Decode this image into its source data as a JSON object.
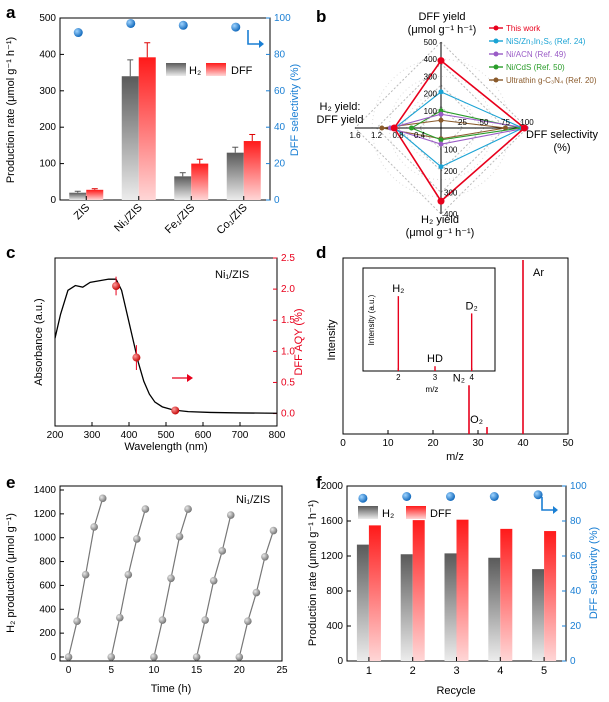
{
  "panels": {
    "a": "a",
    "b": "b",
    "c": "c",
    "d": "d",
    "e": "e",
    "f": "f"
  },
  "chart_data": [
    {
      "panel": "a",
      "type": "bar",
      "categories": [
        "ZIS",
        "Ni₁/ZIS",
        "Fe₁/ZIS",
        "Co₁/ZIS"
      ],
      "series": [
        {
          "name": "H₂",
          "values": [
            20,
            340,
            65,
            130
          ],
          "errors": [
            4,
            45,
            10,
            15
          ]
        },
        {
          "name": "DFF",
          "values": [
            28,
            392,
            100,
            162
          ],
          "errors": [
            3,
            40,
            12,
            18
          ]
        },
        {
          "name": "DFF selectivity",
          "axis": "right",
          "values": [
            92,
            97,
            96,
            95
          ]
        }
      ],
      "ylabel": "Production rate (μmol g⁻¹ h⁻¹)",
      "y2label": "DFF selectivity (%)",
      "ylim": [
        0,
        500
      ],
      "y2lim": [
        0,
        100
      ],
      "yticks": [
        "0",
        "100",
        "200",
        "300",
        "400",
        "500"
      ],
      "y2ticks": [
        "0",
        "20",
        "40",
        "60",
        "80",
        "100"
      ]
    },
    {
      "panel": "b",
      "type": "radar",
      "axes": {
        "top": [
          "DFF yield",
          "(μmol g⁻¹ h⁻¹)"
        ],
        "right": [
          "DFF selectivity",
          "(%)"
        ],
        "bottom": [
          "H₂ yield",
          "(μmol g⁻¹ h⁻¹)"
        ],
        "left": [
          "H₂ yield:",
          "DFF yield"
        ]
      },
      "top_ticks": [
        "100",
        "200",
        "300",
        "400",
        "500"
      ],
      "right_ticks": [
        "25",
        "50",
        "75",
        "100"
      ],
      "bottom_ticks": [
        "100",
        "200",
        "300",
        "400"
      ],
      "left_ticks": [
        "0.4",
        "0.8",
        "1.2",
        "1.6"
      ],
      "series": [
        {
          "name": "This work",
          "color": "#e8001c",
          "top": 392,
          "right": 97,
          "bottom": 340,
          "left": 0.87
        },
        {
          "name": "NiS/Zn₃In₂S₆ (Ref. 24)",
          "color": "#1aa3d4",
          "top": 210,
          "right": 95,
          "bottom": 180,
          "left": 0.86
        },
        {
          "name": "Ni/ACN (Ref. 49)",
          "color": "#9a5cc6",
          "top": 80,
          "right": 99,
          "bottom": 75,
          "left": 0.94
        },
        {
          "name": "Ni/CdS (Ref. 50)",
          "color": "#2a9d2a",
          "top": 100,
          "right": 92,
          "bottom": 55,
          "left": 0.55
        },
        {
          "name": "Ultrathin g-C₃N₄ (Ref. 20)",
          "color": "#8a5a2b",
          "top": 45,
          "right": 75,
          "bottom": 50,
          "left": 1.1
        }
      ]
    },
    {
      "panel": "c",
      "type": "line",
      "annotation": "Ni₁/ZIS",
      "xlabel": "Wavelength (nm)",
      "ylabel": "Absorbance (a.u.)",
      "y2label": "DFF AQY (%)",
      "xlim": [
        200,
        800
      ],
      "y2lim": [
        -0.2,
        2.5
      ],
      "xticks": [
        "200",
        "300",
        "400",
        "500",
        "600",
        "700",
        "800"
      ],
      "y2ticks": [
        "0.0",
        "0.5",
        "1.0",
        "1.5",
        "2.0",
        "2.5"
      ],
      "absorbance": {
        "x": [
          200,
          215,
          235,
          255,
          275,
          295,
          320,
          345,
          365,
          380,
          395,
          410,
          425,
          440,
          455,
          470,
          490,
          520,
          560,
          620,
          700,
          800
        ],
        "y": [
          0.55,
          0.7,
          0.85,
          0.88,
          0.87,
          0.9,
          0.91,
          0.92,
          0.92,
          0.85,
          0.7,
          0.55,
          0.4,
          0.28,
          0.2,
          0.15,
          0.12,
          0.1,
          0.09,
          0.085,
          0.082,
          0.08
        ]
      },
      "aqy": {
        "x": [
          365,
          420,
          525
        ],
        "y": [
          2.05,
          0.9,
          0.05
        ],
        "errors": [
          0.15,
          0.2,
          0.02
        ]
      }
    },
    {
      "panel": "d",
      "type": "bar",
      "xlabel": "m/z",
      "ylabel": "Intensity",
      "xlim": [
        0,
        50
      ],
      "xticks": [
        "0",
        "10",
        "20",
        "30",
        "40",
        "50"
      ],
      "peaks": [
        {
          "x": 28,
          "y": 0.28,
          "label": "N₂"
        },
        {
          "x": 32,
          "y": 0.04,
          "label": "O₂"
        },
        {
          "x": 40,
          "y": 1.0,
          "label": "Ar"
        }
      ],
      "inset": {
        "xlabel": "m/z",
        "ylabel": "Intensity (a.u.)",
        "xticks": [
          "2",
          "3",
          "4"
        ],
        "peaks": [
          {
            "x": 2,
            "y": 0.78,
            "label": "H₂"
          },
          {
            "x": 3,
            "y": 0.05,
            "label": "HD"
          },
          {
            "x": 4,
            "y": 0.6,
            "label": "D₂"
          }
        ]
      }
    },
    {
      "panel": "e",
      "type": "scatter",
      "annotation": "Ni₁/ZIS",
      "xlabel": "Time (h)",
      "ylabel": "H₂ production (μmol g⁻¹)",
      "xlim": [
        -1,
        25
      ],
      "ylim": [
        0,
        1400
      ],
      "xticks": [
        "0",
        "5",
        "10",
        "15",
        "20",
        "25"
      ],
      "yticks": [
        "0",
        "200",
        "400",
        "600",
        "800",
        "1000",
        "1200",
        "1400"
      ],
      "cycles": [
        {
          "x": [
            0,
            1,
            2,
            3,
            4
          ],
          "y": [
            0,
            300,
            690,
            1090,
            1330
          ]
        },
        {
          "x": [
            5,
            6,
            7,
            8,
            9
          ],
          "y": [
            0,
            330,
            690,
            990,
            1240
          ]
        },
        {
          "x": [
            10,
            11,
            12,
            13,
            14
          ],
          "y": [
            0,
            310,
            660,
            1010,
            1240
          ]
        },
        {
          "x": [
            15,
            16,
            17,
            18,
            19
          ],
          "y": [
            0,
            310,
            640,
            890,
            1190
          ]
        },
        {
          "x": [
            20,
            21,
            22,
            23,
            24
          ],
          "y": [
            0,
            300,
            540,
            840,
            1060
          ]
        }
      ]
    },
    {
      "panel": "f",
      "type": "bar",
      "categories": [
        "1",
        "2",
        "3",
        "4",
        "5"
      ],
      "series": [
        {
          "name": "H₂",
          "values": [
            1330,
            1220,
            1230,
            1180,
            1050
          ]
        },
        {
          "name": "DFF",
          "values": [
            1550,
            1610,
            1615,
            1510,
            1485
          ]
        },
        {
          "name": "DFF selectivity",
          "axis": "right",
          "values": [
            93,
            94,
            94,
            94,
            95
          ]
        }
      ],
      "xlabel": "Recycle",
      "ylabel": "Production rate (μmol g⁻¹ h⁻¹)",
      "y2label": "DFF selectivity (%)",
      "ylim": [
        0,
        2000
      ],
      "y2lim": [
        0,
        100
      ],
      "yticks": [
        "0",
        "400",
        "800",
        "1200",
        "1600",
        "2000"
      ],
      "y2ticks": [
        "0",
        "20",
        "40",
        "60",
        "80",
        "100"
      ]
    }
  ]
}
